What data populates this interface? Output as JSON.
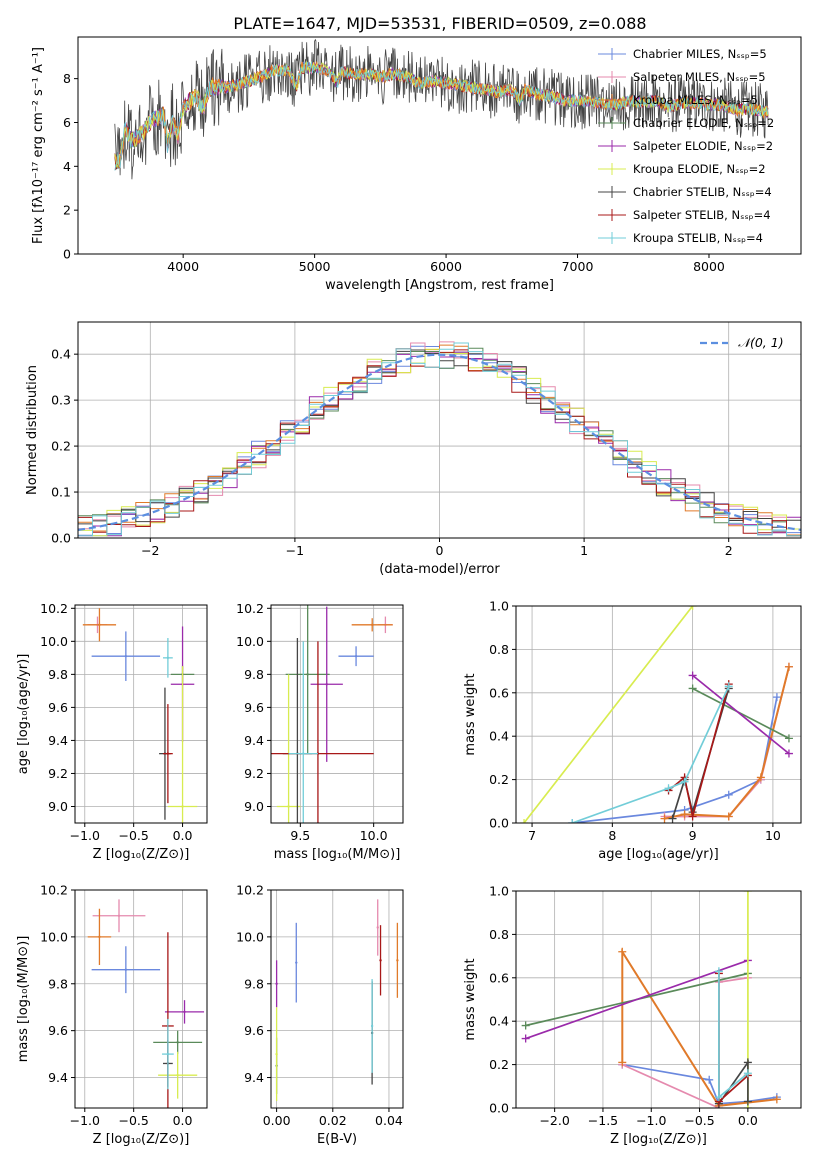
{
  "title": "PLATE=1647, MJD=53531, FIBERID=0509, z=0.088",
  "colors": [
    "#6a88de",
    "#e58aae",
    "#e07a2a",
    "#5a8a5a",
    "#9a2aaa",
    "#d8ec50",
    "#444444",
    "#a81818",
    "#72cdd8"
  ],
  "chart_data": [
    {
      "id": "spectrum",
      "type": "line",
      "title": "PLATE=1647, MJD=53531, FIBERID=0509, z=0.088",
      "xlabel": "wavelength [Angstrom, rest frame]",
      "ylabel": "Flux [fλ10⁻¹⁷ erg cm⁻² s⁻¹ A⁻¹]",
      "xlim": [
        3200,
        8700
      ],
      "ylim": [
        0,
        9.9
      ],
      "xticks": [
        4000,
        5000,
        6000,
        7000,
        8000
      ],
      "yticks": [
        0,
        2,
        4,
        6,
        8
      ],
      "grid": false,
      "legend_position": "top-right",
      "series_names": [
        "Chabrier MILES, N_SSP=5",
        "Salpeter MILES, N_SSP=5",
        "Kroupa MILES, N_SSP=5",
        "Chabrier ELODIE, N_SSP=2",
        "Salpeter ELODIE, N_SSP=2",
        "Kroupa ELODIE, N_SSP=2",
        "Chabrier STELIB, N_SSP=4",
        "Salpeter STELIB, N_SSP=4",
        "Kroupa STELIB, N_SSP=4"
      ],
      "data_x": [
        3480,
        3520,
        3560,
        3600,
        3650,
        3700,
        3750,
        3800,
        3850,
        3880,
        3920,
        3960,
        4000,
        4050,
        4100,
        4150,
        4200,
        4300,
        4400,
        4500,
        4600,
        4700,
        4800,
        4862,
        4900,
        5000,
        5100,
        5175,
        5200,
        5300,
        5400,
        5500,
        5600,
        5700,
        5800,
        5900,
        6000,
        6100,
        6200,
        6300,
        6400,
        6500,
        6563,
        6600,
        6700,
        6800,
        6900,
        7000,
        7100,
        7200,
        7300,
        7400,
        7500,
        7600,
        7700,
        7800,
        7900,
        8000,
        8100,
        8200,
        8300,
        8450
      ],
      "data_y": [
        4.2,
        4.3,
        5.8,
        5.2,
        5.3,
        5.6,
        6.0,
        6.2,
        6.4,
        5.0,
        6.0,
        5.4,
        6.7,
        7.0,
        7.2,
        6.6,
        7.6,
        7.6,
        7.7,
        7.9,
        8.1,
        8.4,
        8.4,
        7.6,
        8.5,
        8.5,
        8.4,
        7.8,
        8.3,
        8.2,
        8.2,
        8.1,
        8.2,
        8.1,
        7.8,
        7.9,
        7.8,
        7.7,
        7.6,
        7.5,
        7.4,
        7.5,
        7.0,
        7.5,
        7.3,
        7.2,
        7.0,
        7.0,
        6.9,
        6.9,
        6.8,
        7.0,
        6.9,
        7.0,
        6.7,
        6.9,
        6.9,
        6.8,
        6.8,
        6.6,
        6.6,
        6.5
      ]
    },
    {
      "id": "residuals",
      "type": "histogram",
      "xlabel": "(data-model)/error",
      "ylabel": "Normed distribution",
      "xlim": [
        -2.5,
        2.5
      ],
      "ylim": [
        0,
        0.47
      ],
      "xticks": [
        -2,
        -1,
        0,
        1,
        2
      ],
      "yticks": [
        0.0,
        0.1,
        0.2,
        0.3,
        0.4
      ],
      "grid": true,
      "legend_position": "top-right",
      "reference_label": "𝒩(0, 1)",
      "reference": {
        "mean": 0,
        "sigma": 1
      },
      "bin_width": 0.1,
      "bin_start": -2.5
    },
    {
      "id": "age-vs-z",
      "type": "scatter",
      "xlabel": "Z [log₁₀(Z/Z⊙)]",
      "ylabel": "age  [log₁₀(age/yr)]",
      "xlim": [
        -1.1,
        0.25
      ],
      "ylim": [
        8.9,
        10.22
      ],
      "xticks": [
        -1.0,
        -0.5,
        0.0
      ],
      "yticks": [
        9.0,
        9.2,
        9.4,
        9.6,
        9.8,
        10.0,
        10.2
      ],
      "grid": true,
      "points": [
        {
          "x": -0.58,
          "y": 9.91,
          "xerr": 0.35,
          "yerr": 0.15
        },
        {
          "x": -0.87,
          "y": 10.1,
          "xerr": 0.1,
          "yerr": 0.05
        },
        {
          "x": -0.85,
          "y": 10.1,
          "xerr": 0.17,
          "yerr": 0.1
        },
        {
          "x": 0.0,
          "y": 9.8,
          "xerr": 0.12,
          "yerr": 0.05
        },
        {
          "x": 0.0,
          "y": 9.74,
          "xerr": 0.12,
          "yerr": 0.35
        },
        {
          "x": 0.0,
          "y": 9.0,
          "xerr": 0.15,
          "yerr": 0.85
        },
        {
          "x": -0.18,
          "y": 9.32,
          "xerr": 0.06,
          "yerr": 0.4
        },
        {
          "x": -0.15,
          "y": 9.32,
          "xerr": 0.05,
          "yerr": 0.3
        },
        {
          "x": -0.15,
          "y": 9.9,
          "xerr": 0.05,
          "yerr": 0.12
        }
      ]
    },
    {
      "id": "age-vs-mass",
      "type": "scatter",
      "xlabel": "mass [log₁₀(M/M⊙)]",
      "ylabel": "",
      "xlim": [
        9.3,
        10.2
      ],
      "ylim": [
        8.9,
        10.22
      ],
      "xticks": [
        9.5,
        10.0
      ],
      "yticks": [
        9.0,
        9.2,
        9.4,
        9.6,
        9.8,
        10.0,
        10.2
      ],
      "grid": true,
      "points": [
        {
          "x": 9.88,
          "y": 9.91,
          "xerr": 0.12,
          "yerr": 0.06
        },
        {
          "x": 10.08,
          "y": 10.1,
          "xerr": 0.05,
          "yerr": 0.05
        },
        {
          "x": 9.99,
          "y": 10.1,
          "xerr": 0.14,
          "yerr": 0.04
        },
        {
          "x": 9.55,
          "y": 9.8,
          "xerr": 0.15,
          "yerr": 0.48
        },
        {
          "x": 9.68,
          "y": 9.74,
          "xerr": 0.11,
          "yerr": 0.47
        },
        {
          "x": 9.42,
          "y": 9.0,
          "xerr": 0.08,
          "yerr": 0.8
        },
        {
          "x": 9.48,
          "y": 9.32,
          "xerr": 0.1,
          "yerr": 0.7
        },
        {
          "x": 9.62,
          "y": 9.32,
          "xerr": 0.38,
          "yerr": 0.68
        },
        {
          "x": 9.52,
          "y": 9.32,
          "xerr": 0.1,
          "yerr": 0.68
        }
      ]
    },
    {
      "id": "weight-vs-age",
      "type": "line",
      "xlabel": "age  [log₁₀(age/yr)]",
      "ylabel": "mass weight",
      "xlim": [
        6.8,
        10.35
      ],
      "ylim": [
        0,
        1.0
      ],
      "xticks": [
        7,
        8,
        9,
        10
      ],
      "yticks": [
        0.0,
        0.2,
        0.4,
        0.6,
        0.8,
        1.0
      ],
      "grid": true,
      "series": [
        {
          "x": [
            7.5,
            8.9,
            9.45,
            9.85,
            10.05
          ],
          "y": [
            0.0,
            0.06,
            0.13,
            0.2,
            0.58
          ]
        },
        {
          "x": [
            8.65,
            8.9,
            9.45,
            9.85,
            10.2
          ],
          "y": [
            0.03,
            0.03,
            0.03,
            0.2,
            0.72
          ]
        },
        {
          "x": [
            8.65,
            8.9,
            9.45,
            9.85,
            10.2
          ],
          "y": [
            0.02,
            0.04,
            0.03,
            0.21,
            0.72
          ]
        },
        {
          "x": [
            9.0,
            10.2
          ],
          "y": [
            0.62,
            0.39
          ]
        },
        {
          "x": [
            9.0,
            10.2
          ],
          "y": [
            0.68,
            0.32
          ]
        },
        {
          "x": [
            6.9,
            9.0
          ],
          "y": [
            0.0,
            1.0
          ]
        },
        {
          "x": [
            8.75,
            8.9,
            9.0,
            9.45
          ],
          "y": [
            0.02,
            0.2,
            0.05,
            0.62
          ]
        },
        {
          "x": [
            8.7,
            8.9,
            9.0,
            9.45
          ],
          "y": [
            0.15,
            0.21,
            0.03,
            0.64
          ]
        },
        {
          "x": [
            7.5,
            8.7,
            8.9,
            9.45
          ],
          "y": [
            0.0,
            0.16,
            0.19,
            0.63
          ]
        }
      ]
    },
    {
      "id": "mass-vs-z",
      "type": "scatter",
      "xlabel": "Z [log₁₀(Z/Z⊙)]",
      "ylabel": "mass [log₁₀(M/M⊙)]",
      "xlim": [
        -1.1,
        0.25
      ],
      "ylim": [
        9.27,
        10.2
      ],
      "xticks": [
        -1.0,
        -0.5,
        0.0
      ],
      "yticks": [
        9.4,
        9.6,
        9.8,
        10.0,
        10.2
      ],
      "grid": true,
      "points": [
        {
          "x": -0.58,
          "y": 9.86,
          "xerr": 0.35,
          "yerr": 0.1
        },
        {
          "x": -0.65,
          "y": 10.09,
          "xerr": 0.27,
          "yerr": 0.07
        },
        {
          "x": -0.85,
          "y": 10.0,
          "xerr": 0.12,
          "yerr": 0.12
        },
        {
          "x": -0.05,
          "y": 9.55,
          "xerr": 0.25,
          "yerr": 0.05
        },
        {
          "x": 0.02,
          "y": 9.68,
          "xerr": 0.2,
          "yerr": 0.05
        },
        {
          "x": -0.05,
          "y": 9.41,
          "xerr": 0.2,
          "yerr": 0.1
        },
        {
          "x": -0.15,
          "y": 9.46,
          "xerr": 0.05,
          "yerr": 0.1
        },
        {
          "x": -0.15,
          "y": 9.62,
          "xerr": 0.06,
          "yerr": 0.4
        },
        {
          "x": -0.15,
          "y": 9.5,
          "xerr": 0.06,
          "yerr": 0.15
        }
      ]
    },
    {
      "id": "mass-vs-ebv",
      "type": "scatter",
      "xlabel": "E(B-V)",
      "ylabel": "",
      "xlim": [
        -0.002,
        0.045
      ],
      "ylim": [
        9.27,
        10.2
      ],
      "xticks": [
        0.0,
        0.02,
        0.04
      ],
      "yticks": [
        9.4,
        9.6,
        9.8,
        10.0,
        10.2
      ],
      "grid": true,
      "points": [
        {
          "x": 0.007,
          "y": 9.89,
          "yerr": 0.17
        },
        {
          "x": 0.036,
          "y": 10.04,
          "yerr": 0.12
        },
        {
          "x": 0.043,
          "y": 9.9,
          "yerr": 0.16
        },
        {
          "x": 0.0,
          "y": 9.45,
          "yerr": 0.12
        },
        {
          "x": 0.0,
          "y": 9.8,
          "yerr": 0.1
        },
        {
          "x": 0.0,
          "y": 9.5,
          "yerr": 0.2
        },
        {
          "x": 0.034,
          "y": 9.59,
          "yerr": 0.22
        },
        {
          "x": 0.037,
          "y": 9.9,
          "yerr": 0.15
        },
        {
          "x": 0.034,
          "y": 9.62,
          "yerr": 0.2
        }
      ]
    },
    {
      "id": "weight-vs-z",
      "type": "line",
      "xlabel": "Z [log₁₀(Z/Z⊙)]",
      "ylabel": "mass weight",
      "xlim": [
        -2.4,
        0.55
      ],
      "ylim": [
        0,
        1.0
      ],
      "xticks": [
        -2.0,
        -1.5,
        -1.0,
        -0.5,
        0.0
      ],
      "yticks": [
        0.0,
        0.2,
        0.4,
        0.6,
        0.8,
        1.0
      ],
      "grid": true,
      "series": [
        {
          "x": [
            -1.3,
            -0.4,
            -0.3,
            0.0,
            0.3
          ],
          "y": [
            0.2,
            0.13,
            0.02,
            0.03,
            0.05
          ]
        },
        {
          "x": [
            -1.3,
            -0.3,
            -0.3,
            0.0
          ],
          "y": [
            0.2,
            0.0,
            0.58,
            0.6
          ]
        },
        {
          "x": [
            -1.3,
            -1.3,
            -0.3,
            0.3
          ],
          "y": [
            0.21,
            0.72,
            0.01,
            0.04
          ]
        },
        {
          "x": [
            -2.3,
            0.0
          ],
          "y": [
            0.38,
            0.62
          ]
        },
        {
          "x": [
            -2.3,
            0.0
          ],
          "y": [
            0.32,
            0.68
          ]
        },
        {
          "x": [
            0.0,
            0.0
          ],
          "y": [
            0.0,
            1.0
          ]
        },
        {
          "x": [
            -0.3,
            0.0,
            0.0
          ],
          "y": [
            0.02,
            0.21,
            0.03
          ]
        },
        {
          "x": [
            -0.3,
            -0.3,
            0.0
          ],
          "y": [
            0.62,
            0.03,
            0.15
          ]
        },
        {
          "x": [
            -0.3,
            -0.3,
            0.0
          ],
          "y": [
            0.63,
            0.05,
            0.16
          ]
        }
      ]
    }
  ]
}
